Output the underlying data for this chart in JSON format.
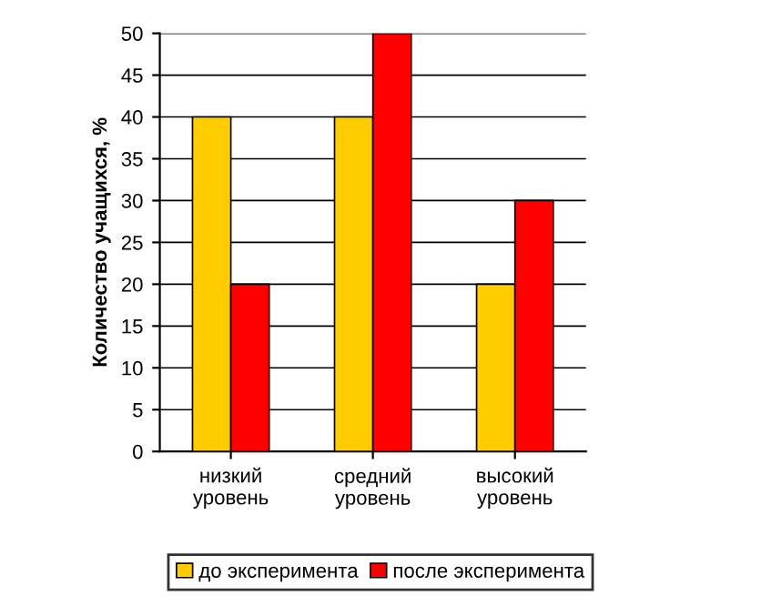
{
  "chart_data": {
    "type": "bar",
    "ylabel": "Количество учащихся, %",
    "categories": [
      "низкий\nуровень",
      "средний\nуровень",
      "высокий\nуровень"
    ],
    "series": [
      {
        "name": "до эксперимента",
        "color": "#ffcc00",
        "values": [
          40,
          40,
          20
        ]
      },
      {
        "name": "после эксперимента",
        "color": "#ff0000",
        "values": [
          20,
          50,
          30
        ]
      }
    ],
    "ylim": [
      0,
      50
    ],
    "yticks": [
      0,
      5,
      10,
      15,
      20,
      25,
      30,
      35,
      40,
      45,
      50
    ],
    "grid": "y",
    "legend": "bottom"
  }
}
